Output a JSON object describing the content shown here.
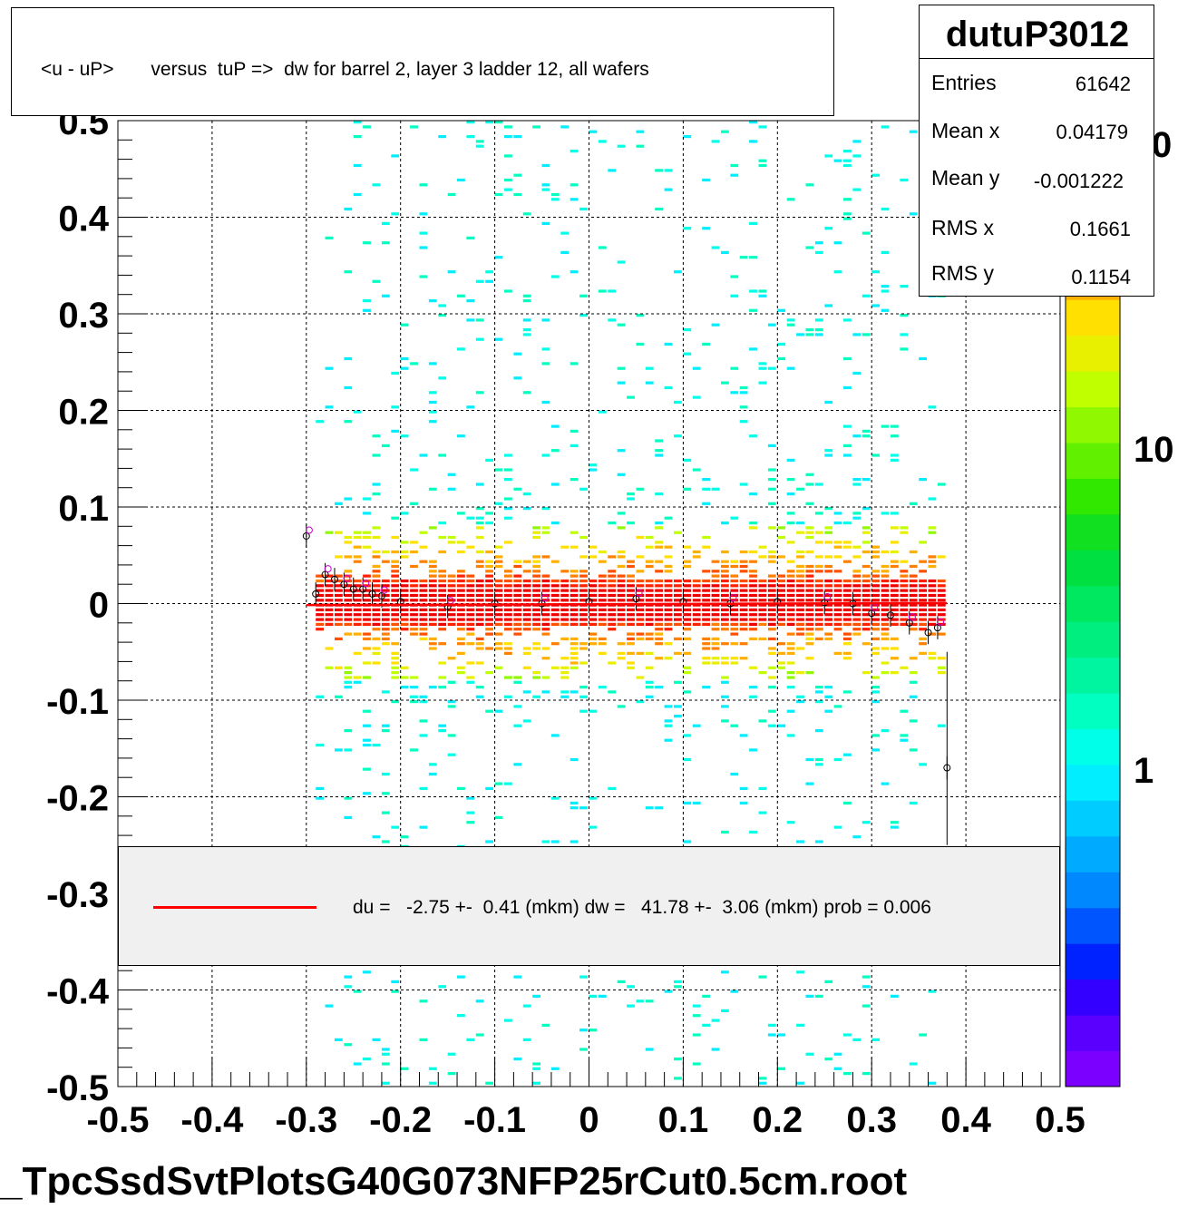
{
  "title": "<u - uP>       versus  tuP =>  dw for barrel 2, layer 3 ladder 12, all wafers",
  "stats": {
    "name": "dutuP3012",
    "rows": [
      {
        "label": "Entries",
        "value": "61642"
      },
      {
        "label": "Mean x",
        "value": "0.04179"
      },
      {
        "label": "Mean y",
        "value": "-0.001222"
      },
      {
        "label": "RMS x",
        "value": "0.1661"
      },
      {
        "label": "RMS y",
        "value": "0.1154"
      }
    ]
  },
  "legend": {
    "text": "du =   -2.75 +-  0.41 (mkm) dw =   41.78 +-  3.06 (mkm) prob = 0.006",
    "line_color": "#ff0000"
  },
  "footer": "_TpcSsdSvtPlotsG40G073NFP25rCut0.5cm.root",
  "colors": {
    "palette": [
      "#7b00ff",
      "#5a00ff",
      "#3300ff",
      "#0022ff",
      "#0055ff",
      "#0088ff",
      "#00aaff",
      "#00ccff",
      "#00eeff",
      "#00ffe8",
      "#00ffc0",
      "#00f5a0",
      "#00ee80",
      "#00e860",
      "#00e040",
      "#10e020",
      "#30e800",
      "#60f000",
      "#90f800",
      "#c0ff00",
      "#e8f000",
      "#ffe000",
      "#ffb000",
      "#ff8000",
      "#ff5000",
      "#ff2000",
      "#ee0000"
    ],
    "fit_line": "#ff0000"
  },
  "chart_data": {
    "type": "heatmap",
    "title": "<u - uP>       versus  tuP =>  dw for barrel 2, layer 3 ladder 12, all wafers",
    "xlim": [
      -0.5,
      0.5
    ],
    "ylim": [
      -0.5,
      0.5
    ],
    "x_ticks": [
      "-0.5",
      "-0.4",
      "-0.3",
      "-0.2",
      "-0.1",
      "0",
      "0.1",
      "0.2",
      "0.3",
      "0.4",
      "0.5"
    ],
    "y_ticks": [
      "-0.5",
      "-0.4",
      "-0.3",
      "-0.2",
      "-0.1",
      "0",
      "0.1",
      "0.2",
      "0.3",
      "0.4",
      "0.5"
    ],
    "z_scale": "log",
    "z_ticks": [
      "1",
      "10"
    ],
    "z_tick_partial": "0",
    "grid": true,
    "data_x_range": [
      -0.29,
      0.38
    ],
    "band_center_y": 0.0,
    "fit_line": {
      "x": [
        -0.3,
        0.38
      ],
      "y": [
        -0.0015,
        0.0005
      ]
    },
    "profile_points": [
      {
        "x": -0.3,
        "y": 0.07
      },
      {
        "x": -0.29,
        "y": 0.01
      },
      {
        "x": -0.28,
        "y": 0.03
      },
      {
        "x": -0.27,
        "y": 0.025
      },
      {
        "x": -0.26,
        "y": 0.02
      },
      {
        "x": -0.25,
        "y": 0.015
      },
      {
        "x": -0.24,
        "y": 0.015
      },
      {
        "x": -0.23,
        "y": 0.01
      },
      {
        "x": -0.22,
        "y": 0.008
      },
      {
        "x": -0.2,
        "y": 0.002
      },
      {
        "x": -0.15,
        "y": -0.003
      },
      {
        "x": -0.1,
        "y": 0.0
      },
      {
        "x": -0.05,
        "y": 0.0
      },
      {
        "x": 0.0,
        "y": 0.002
      },
      {
        "x": 0.05,
        "y": 0.005
      },
      {
        "x": 0.1,
        "y": 0.002
      },
      {
        "x": 0.15,
        "y": 0.0
      },
      {
        "x": 0.2,
        "y": 0.002
      },
      {
        "x": 0.25,
        "y": 0.001
      },
      {
        "x": 0.28,
        "y": 0.0
      },
      {
        "x": 0.3,
        "y": -0.01
      },
      {
        "x": 0.32,
        "y": -0.012
      },
      {
        "x": 0.34,
        "y": -0.02
      },
      {
        "x": 0.36,
        "y": -0.03
      },
      {
        "x": 0.37,
        "y": -0.025
      },
      {
        "x": 0.38,
        "y": -0.17
      }
    ]
  }
}
